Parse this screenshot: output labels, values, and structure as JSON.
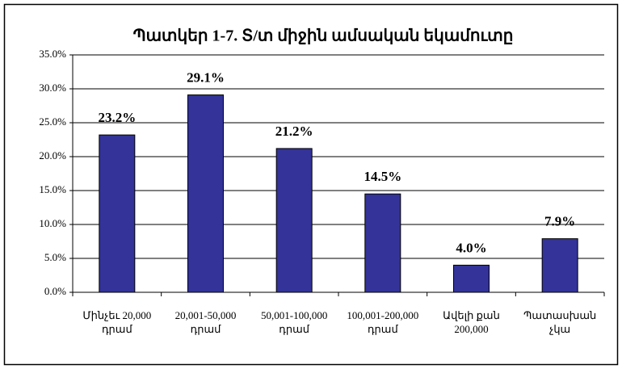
{
  "chart_data": {
    "type": "bar",
    "title": "Պատկեր 1-7. Տ/տ միջին ամսական եկամուտը",
    "categories": [
      "Մինչեւ 20,000 դրամ",
      "20,001-50,000 դրամ",
      "50,001-100,000 դրամ",
      "100,001-200,000 դրամ",
      "Ավելի քան 200,000",
      "Պատասխան չկա"
    ],
    "values": [
      23.2,
      29.1,
      21.2,
      14.5,
      4.0,
      7.9
    ],
    "value_labels": [
      "23.2%",
      "29.1%",
      "21.2%",
      "14.5%",
      "4.0%",
      "7.9%"
    ],
    "color": "#333399",
    "ylim": [
      0,
      35
    ],
    "yticks": [
      {
        "value": 0,
        "label": "0.0%"
      },
      {
        "value": 5,
        "label": "5.0%"
      },
      {
        "value": 10,
        "label": "10.0%"
      },
      {
        "value": 15,
        "label": "15.0%"
      },
      {
        "value": 20,
        "label": "20.0%"
      },
      {
        "value": 25,
        "label": "25.0%"
      },
      {
        "value": 30,
        "label": "30.0%"
      },
      {
        "value": 35,
        "label": "35.0%"
      }
    ],
    "grid": true
  }
}
